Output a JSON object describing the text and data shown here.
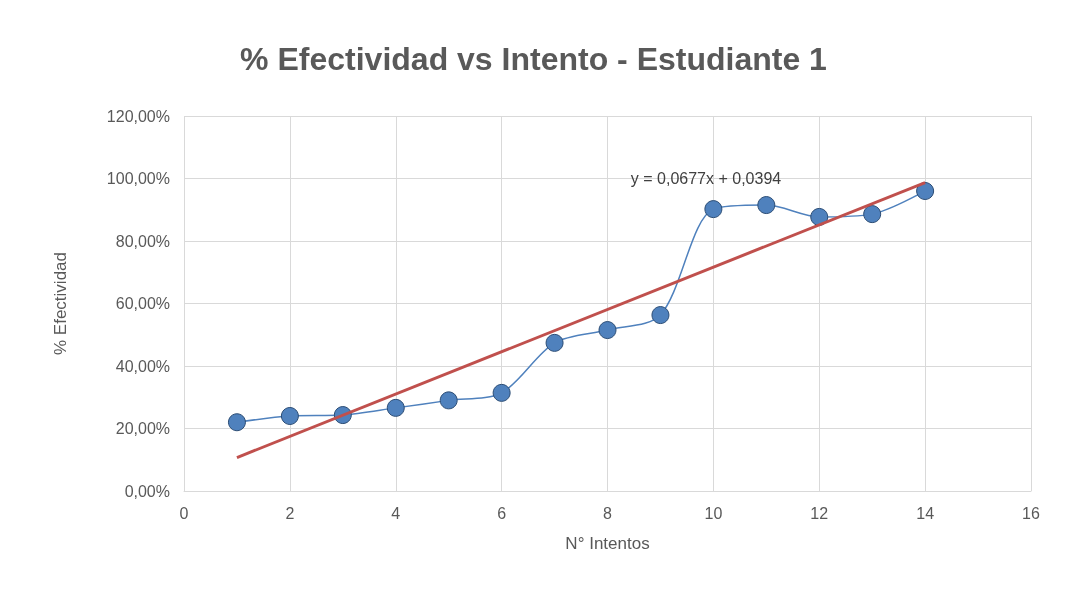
{
  "chart_data": {
    "type": "line",
    "title": "% Efectividad vs Intento - Estudiante 1",
    "xlabel": "N° Intentos",
    "ylabel": "% Efectividad",
    "x": [
      1,
      2,
      3,
      4,
      5,
      6,
      7,
      8,
      9,
      10,
      11,
      12,
      13,
      14
    ],
    "series": [
      {
        "color": "#4f81bd",
        "marker": "circle",
        "values": [
          22,
          24,
          24.3,
          26.6,
          29,
          31.4,
          47.4,
          51.5,
          56.3,
          90.2,
          91.5,
          87.7,
          88.6,
          96
        ]
      },
      {
        "type": "line",
        "color": "#c0504d",
        "marker": "none",
        "x": [
          1,
          14
        ],
        "values": [
          10.7,
          98.7
        ]
      }
    ],
    "xlim": [
      0,
      16
    ],
    "xticks": [
      0,
      2,
      4,
      6,
      8,
      10,
      12,
      14,
      16
    ],
    "ylim": [
      0,
      120
    ],
    "yticks": [
      {
        "value": 0,
        "label": "0,00%"
      },
      {
        "value": 20,
        "label": "20,00%"
      },
      {
        "value": 40,
        "label": "40,00%"
      },
      {
        "value": 60,
        "label": "60,00%"
      },
      {
        "value": 80,
        "label": "80,00%"
      },
      {
        "value": 100,
        "label": "100,00%"
      },
      {
        "value": 120,
        "label": "120,00%"
      }
    ],
    "annotations": [
      "y = 0,0677x + 0,0394"
    ],
    "grid": true
  }
}
